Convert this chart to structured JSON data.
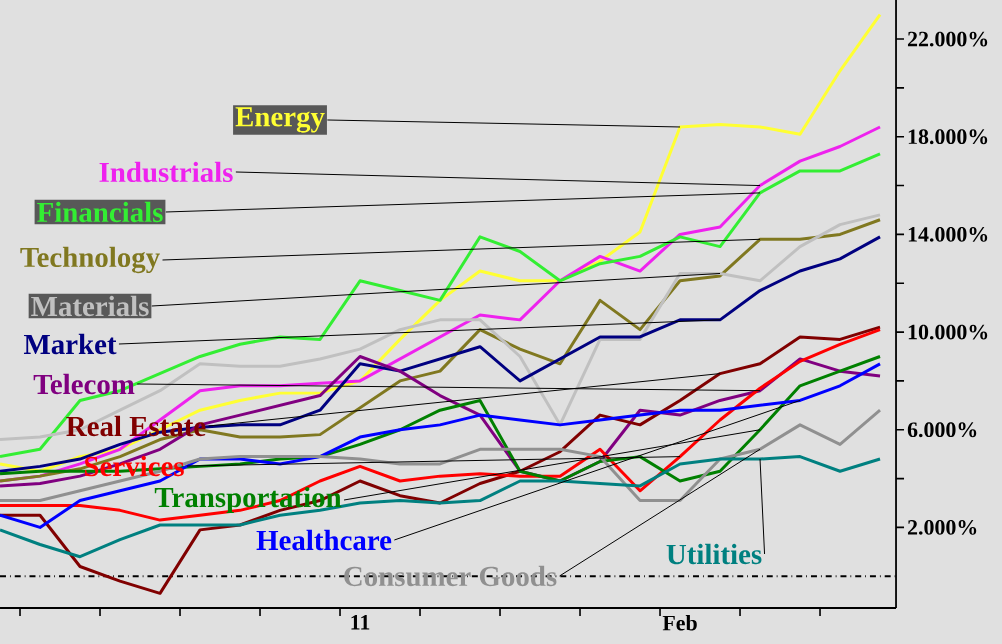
{
  "chart_data": {
    "type": "line",
    "categories": [
      null,
      null,
      null,
      null,
      null,
      null,
      null,
      null,
      null,
      "11",
      null,
      null,
      null,
      null,
      null,
      null,
      null,
      "Feb",
      null,
      null,
      null,
      null,
      null
    ],
    "series": [
      {
        "name": "Energy",
        "color": "#ffff33",
        "values": [
          4.6,
          4.3,
          4.9,
          5.2,
          6.0,
          6.8,
          7.2,
          7.5,
          7.5,
          8.0,
          9.7,
          11.3,
          12.5,
          12.1,
          12.1,
          12.9,
          14.1,
          18.4,
          18.5,
          18.4,
          18.1,
          20.7,
          23.0
        ]
      },
      {
        "name": "Industrials",
        "color": "#ee22ee",
        "values": [
          3.9,
          4.1,
          4.6,
          5.2,
          6.4,
          7.6,
          7.8,
          7.8,
          7.9,
          8.0,
          8.9,
          9.8,
          10.7,
          10.5,
          12.1,
          13.1,
          12.5,
          14.0,
          14.3,
          16.0,
          17.0,
          17.6,
          18.4
        ]
      },
      {
        "name": "Financials",
        "color": "#33ee33",
        "values": [
          4.9,
          5.2,
          7.2,
          7.6,
          8.3,
          9.0,
          9.5,
          9.8,
          9.7,
          12.1,
          11.7,
          11.3,
          13.9,
          13.3,
          12.1,
          12.8,
          13.1,
          13.9,
          13.5,
          15.7,
          16.6,
          16.6,
          17.3
        ]
      },
      {
        "name": "Technology",
        "color": "#807820",
        "values": [
          3.9,
          4.1,
          4.4,
          4.9,
          5.6,
          6.0,
          5.7,
          5.7,
          5.8,
          6.9,
          8.0,
          8.4,
          10.1,
          9.3,
          8.7,
          11.3,
          10.1,
          12.1,
          12.3,
          13.8,
          13.8,
          14.0,
          14.6
        ]
      },
      {
        "name": "Materials",
        "color": "#c0c0c0",
        "values": [
          5.6,
          5.7,
          6.0,
          6.8,
          7.6,
          8.7,
          8.6,
          8.6,
          8.9,
          9.3,
          10.1,
          10.5,
          10.5,
          9.0,
          6.2,
          9.7,
          9.7,
          12.4,
          12.4,
          12.1,
          13.5,
          14.4,
          14.8
        ]
      },
      {
        "name": "Market",
        "color": "#000080",
        "values": [
          4.3,
          4.5,
          4.8,
          5.4,
          5.9,
          6.1,
          6.2,
          6.2,
          6.8,
          8.7,
          8.4,
          8.9,
          9.4,
          8.0,
          8.9,
          9.8,
          9.8,
          10.5,
          10.5,
          11.7,
          12.5,
          13.0,
          13.9
        ]
      },
      {
        "name": "Telecom",
        "color": "#800080",
        "values": [
          3.7,
          3.8,
          4.1,
          4.6,
          5.2,
          6.2,
          6.6,
          7.0,
          7.4,
          9.0,
          8.4,
          7.4,
          6.6,
          4.3,
          3.9,
          4.7,
          6.8,
          6.6,
          7.2,
          7.6,
          8.9,
          8.4,
          8.2
        ]
      },
      {
        "name": "Real Estate",
        "color": "#800000",
        "values": [
          2.5,
          2.5,
          0.4,
          -0.2,
          -0.7,
          1.9,
          2.1,
          2.7,
          3.1,
          3.9,
          3.3,
          3.0,
          3.8,
          4.3,
          5.1,
          6.6,
          6.2,
          7.2,
          8.3,
          8.7,
          9.8,
          9.7,
          10.2
        ]
      },
      {
        "name": "Services",
        "color": "#ff0000",
        "values": [
          2.9,
          2.9,
          2.9,
          2.7,
          2.3,
          2.5,
          2.7,
          3.1,
          3.9,
          4.5,
          3.9,
          4.1,
          4.2,
          4.1,
          4.1,
          5.2,
          3.5,
          4.9,
          6.4,
          7.7,
          8.8,
          9.5,
          10.1
        ]
      },
      {
        "name": "Transportation",
        "color": "#008000",
        "values": [
          4.2,
          4.3,
          4.3,
          4.3,
          4.4,
          4.5,
          4.6,
          4.8,
          4.9,
          5.4,
          6.0,
          6.8,
          7.2,
          4.3,
          3.9,
          4.7,
          4.9,
          3.9,
          4.3,
          6.0,
          7.8,
          8.4,
          9.0
        ]
      },
      {
        "name": "Healthcare",
        "color": "#0000ff",
        "values": [
          2.5,
          2.0,
          3.1,
          3.5,
          3.9,
          4.8,
          4.8,
          4.6,
          4.9,
          5.7,
          6.0,
          6.2,
          6.6,
          6.4,
          6.2,
          6.4,
          6.6,
          6.8,
          6.8,
          7.0,
          7.2,
          7.8,
          8.7
        ]
      },
      {
        "name": "Consumer Goods",
        "color": "#909090",
        "values": [
          3.1,
          3.1,
          3.5,
          3.9,
          4.3,
          4.8,
          4.9,
          4.9,
          4.9,
          4.8,
          4.6,
          4.6,
          5.2,
          5.2,
          5.2,
          4.9,
          3.1,
          3.1,
          4.8,
          5.2,
          6.2,
          5.4,
          6.8
        ]
      },
      {
        "name": "Utilities",
        "color": "#008080",
        "values": [
          1.9,
          1.3,
          0.8,
          1.5,
          2.1,
          2.1,
          2.1,
          2.5,
          2.7,
          3.0,
          3.1,
          3.0,
          3.1,
          3.9,
          3.9,
          3.8,
          3.7,
          4.6,
          4.8,
          4.8,
          4.9,
          4.3,
          4.8
        ]
      }
    ],
    "ylim": [
      -1.3,
      23.6
    ],
    "yticks": [
      {
        "value": 2,
        "label": "2.000%"
      },
      {
        "value": 4,
        "label": null
      },
      {
        "value": 6,
        "label": "6.000%"
      },
      {
        "value": 8,
        "label": null
      },
      {
        "value": 10,
        "label": "10.000%"
      },
      {
        "value": 12,
        "label": null
      },
      {
        "value": 14,
        "label": "14.000%"
      },
      {
        "value": 16,
        "label": null
      },
      {
        "value": 18,
        "label": "18.000%"
      },
      {
        "value": 20,
        "label": null
      },
      {
        "value": 22,
        "label": "22.000%"
      }
    ],
    "ref_lines": [
      {
        "axis": "y",
        "value": 0,
        "color": "#000000",
        "line_style": "dashdot"
      }
    ],
    "marker": "none",
    "line_style": "solid"
  }
}
